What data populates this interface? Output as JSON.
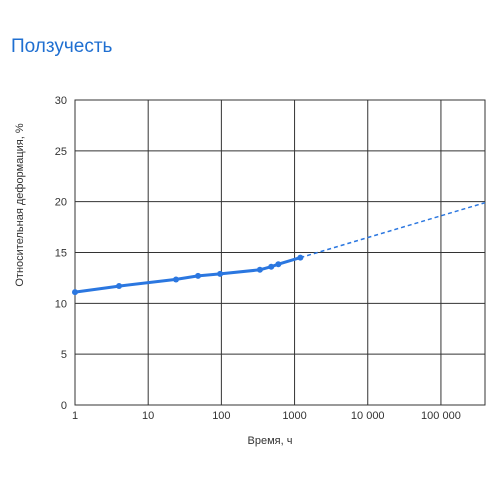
{
  "page": {
    "title": "Ползучесть"
  },
  "colors": {
    "accent": "#1f6fd1",
    "grid": "#333333",
    "series": "#2b77e0"
  },
  "chart_data": {
    "type": "line",
    "title": "Ползучесть",
    "xlabel": "Время, ч",
    "ylabel": "Относительная деформация, %",
    "xscale": "log",
    "xlim": [
      1,
      400000
    ],
    "ylim": [
      0,
      30
    ],
    "grid": true,
    "x_ticks": [
      {
        "value": 1,
        "label": "1"
      },
      {
        "value": 10,
        "label": "10"
      },
      {
        "value": 100,
        "label": "100"
      },
      {
        "value": 1000,
        "label": "1000"
      },
      {
        "value": 10000,
        "label": "10 000"
      },
      {
        "value": 100000,
        "label": "100 000"
      }
    ],
    "y_ticks": [
      {
        "value": 0,
        "label": "0"
      },
      {
        "value": 5,
        "label": "5"
      },
      {
        "value": 10,
        "label": "10"
      },
      {
        "value": 15,
        "label": "15"
      },
      {
        "value": 20,
        "label": "20"
      },
      {
        "value": 25,
        "label": "25"
      },
      {
        "value": 30,
        "label": "30"
      }
    ],
    "series": [
      {
        "style": "solid",
        "markers": true,
        "x": [
          1,
          4,
          24,
          48,
          96,
          336,
          480,
          600,
          1200
        ],
        "y": [
          11.1,
          11.7,
          12.35,
          12.7,
          12.9,
          13.3,
          13.6,
          13.85,
          14.5
        ]
      },
      {
        "style": "dashed",
        "markers": false,
        "x": [
          1200,
          400000
        ],
        "y": [
          14.5,
          19.9
        ]
      }
    ]
  }
}
